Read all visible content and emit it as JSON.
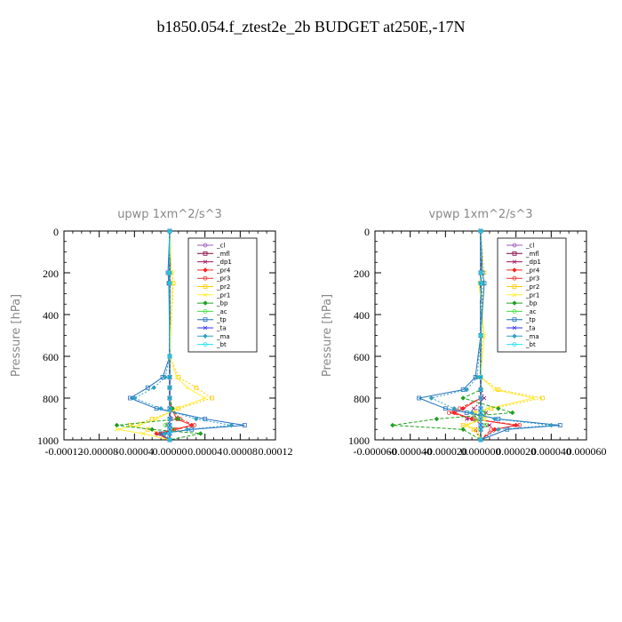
{
  "title": "b1850.054.f_ztest2e_2b  BUDGET at250E,-17N",
  "legend_items": [
    "_cl",
    "_mfl",
    "_dp1",
    "_pr4",
    "_pr3",
    "_pr2",
    "_pr1",
    "_bp",
    "_ac",
    "_tp",
    "_ta",
    "_ma",
    "_bt"
  ],
  "colors": {
    "_cl": "#9b59b6",
    "_mfl": "#800040",
    "_dp1": "#a01060",
    "_pr4": "#ff2020",
    "_pr3": "#e83030",
    "_pr2": "#ffcc00",
    "_pr1": "#ffee33",
    "_bp": "#20a020",
    "_ac": "#40e040",
    "_tp": "#2070c0",
    "_ta": "#3030ff",
    "_ma": "#30a0c0",
    "_bt": "#20e0f0"
  },
  "chart_data": [
    {
      "type": "line",
      "title": "upwp   1xm^2/s^3",
      "ylabel": "Pressure [hPa]",
      "ylim": [
        1000,
        0
      ],
      "xlim": [
        -0.00012,
        0.00012
      ],
      "xticks": [
        -0.00012,
        -8e-05,
        -4e-05,
        0,
        4e-05,
        8e-05,
        0.00012
      ],
      "xtick_labels": [
        "-0.00012",
        "-0.00008",
        "-0.00004",
        "0.00000",
        "0.00004",
        "0.00008",
        "0.00012"
      ],
      "yticks": [
        0,
        200,
        400,
        600,
        800,
        1000
      ],
      "ytick_labels": [
        "0",
        "200",
        "400",
        "600",
        "800",
        "1000"
      ],
      "pressure": [
        0,
        200,
        250,
        600,
        700,
        750,
        800,
        850,
        900,
        930,
        950,
        970,
        1000
      ],
      "series": [
        {
          "name": "_cl",
          "x": [
            0,
            0,
            0,
            0,
            0,
            0,
            0,
            0,
            0,
            0,
            0,
            0,
            0
          ]
        },
        {
          "name": "_mfl",
          "x": [
            0,
            0,
            0,
            0,
            0,
            0,
            0,
            0,
            0,
            0,
            0,
            0,
            0
          ]
        },
        {
          "name": "_dp1",
          "x": [
            0,
            0,
            0,
            0,
            0,
            0,
            0,
            0,
            2e-06,
            -3e-06,
            5e-06,
            -1.2e-05,
            0
          ]
        },
        {
          "name": "_pr4",
          "x": [
            0,
            0,
            0,
            0,
            0,
            0,
            0,
            2e-06,
            8e-06,
            2.5e-05,
            5e-06,
            -1.5e-05,
            0
          ]
        },
        {
          "name": "_pr3",
          "x": [
            0,
            0,
            0,
            0,
            0,
            0,
            0,
            3e-06,
            1.2e-05,
            2.8e-05,
            8e-06,
            -1e-05,
            0
          ]
        },
        {
          "name": "_pr2",
          "x": [
            0,
            2e-06,
            4e-06,
            0,
            1e-05,
            3e-05,
            4.8e-05,
            1e-05,
            -2e-05,
            -4.5e-05,
            -2.5e-05,
            -1e-05,
            0
          ]
        },
        {
          "name": "_pr1",
          "x": [
            0,
            2e-06,
            3e-06,
            0,
            8e-06,
            2e-05,
            4e-05,
            8e-06,
            -1.5e-05,
            -3.5e-05,
            -6e-05,
            -3e-05,
            0
          ]
        },
        {
          "name": "_bp",
          "x": [
            0,
            0,
            0,
            0,
            0,
            0,
            0,
            3e-06,
            1e-05,
            -6e-05,
            -2e-05,
            3.5e-05,
            0
          ]
        },
        {
          "name": "_ac",
          "x": [
            0,
            0,
            0,
            0,
            0,
            0,
            0,
            0,
            0,
            -5e-06,
            4e-06,
            0,
            0
          ]
        },
        {
          "name": "_tp",
          "x": [
            0,
            -2e-06,
            -1e-06,
            0,
            -8e-06,
            -2.5e-05,
            -4.5e-05,
            -1.5e-05,
            4e-05,
            8.5e-05,
            2.5e-05,
            -1e-05,
            0
          ]
        },
        {
          "name": "_ta",
          "x": [
            0,
            0,
            0,
            0,
            0,
            0,
            0,
            0,
            0,
            0,
            0,
            0,
            0
          ]
        },
        {
          "name": "_ma",
          "x": [
            0,
            -1e-06,
            0,
            0,
            -5e-06,
            -1.8e-05,
            -4e-05,
            -1e-05,
            3e-05,
            7e-05,
            2e-05,
            -5e-06,
            0
          ]
        },
        {
          "name": "_bt",
          "x": [
            0,
            0,
            0,
            0,
            0,
            0,
            0,
            0,
            0,
            0,
            0,
            0,
            0
          ]
        }
      ]
    },
    {
      "type": "line",
      "title": "vpwp   1xm^2/s^3",
      "ylabel": "Pressure [hPa]",
      "ylim": [
        1000,
        0
      ],
      "xlim": [
        -6e-05,
        6e-05
      ],
      "xticks": [
        -6e-05,
        -4e-05,
        -2e-05,
        0,
        2e-05,
        4e-05,
        6e-05
      ],
      "xtick_labels": [
        "-0.000060",
        "-0.000040",
        "-0.000020",
        "0.000000",
        "0.000020",
        "0.000040",
        "0.000060"
      ],
      "yticks": [
        0,
        200,
        400,
        600,
        800,
        1000
      ],
      "ytick_labels": [
        "0",
        "200",
        "400",
        "600",
        "800",
        "1000"
      ],
      "pressure": [
        0,
        200,
        250,
        500,
        700,
        760,
        800,
        850,
        870,
        900,
        930,
        950,
        1000
      ],
      "series": [
        {
          "name": "_cl",
          "x": [
            0,
            0,
            0,
            0,
            0,
            0,
            0,
            0,
            0,
            0,
            0,
            0,
            0
          ]
        },
        {
          "name": "_mfl",
          "x": [
            0,
            0,
            0,
            0,
            0,
            0,
            0,
            0,
            0,
            0,
            0,
            0,
            0
          ]
        },
        {
          "name": "_dp1",
          "x": [
            0,
            0,
            0,
            0,
            0,
            0,
            2e-06,
            -4e-06,
            3e-06,
            -8e-06,
            5e-06,
            -3e-06,
            0
          ]
        },
        {
          "name": "_pr4",
          "x": [
            0,
            0,
            0,
            0,
            0,
            0,
            0,
            -1e-05,
            -1.5e-05,
            -5e-06,
            2e-05,
            8e-06,
            0
          ]
        },
        {
          "name": "_pr3",
          "x": [
            0,
            0,
            0,
            0,
            0,
            0,
            0,
            -1.2e-05,
            -1.8e-05,
            -4e-06,
            2.2e-05,
            6e-06,
            0
          ]
        },
        {
          "name": "_pr2",
          "x": [
            0,
            2e-06,
            1e-06,
            1e-06,
            0,
            1e-05,
            3.5e-05,
            6e-06,
            -4e-06,
            2e-06,
            -1e-05,
            -4e-06,
            0
          ]
        },
        {
          "name": "_pr1",
          "x": [
            0,
            1e-06,
            -1e-06,
            2e-06,
            0,
            8e-06,
            3e-05,
            4e-06,
            -3e-06,
            1e-06,
            -8e-06,
            -2e-06,
            0
          ]
        },
        {
          "name": "_bp",
          "x": [
            0,
            0,
            0,
            0,
            0,
            0,
            -1e-05,
            1e-05,
            1.8e-05,
            -2.5e-05,
            -5e-05,
            -1e-05,
            0
          ]
        },
        {
          "name": "_ac",
          "x": [
            0,
            0,
            0,
            0,
            0,
            0,
            0,
            0,
            2e-06,
            -3e-06,
            3e-06,
            0,
            0
          ]
        },
        {
          "name": "_tp",
          "x": [
            0,
            1e-06,
            2e-06,
            0,
            -3e-06,
            -1e-05,
            -3.5e-05,
            -2e-05,
            -8e-06,
            1e-05,
            4.5e-05,
            1.5e-05,
            0
          ]
        },
        {
          "name": "_ta",
          "x": [
            0,
            0,
            0,
            0,
            0,
            0,
            0,
            0,
            0,
            0,
            0,
            0,
            0
          ]
        },
        {
          "name": "_ma",
          "x": [
            0,
            0,
            1e-06,
            0,
            -2e-06,
            -8e-06,
            -2.8e-05,
            -1.5e-05,
            -5e-06,
            8e-06,
            4e-05,
            1e-05,
            0
          ]
        },
        {
          "name": "_bt",
          "x": [
            0,
            0,
            0,
            0,
            0,
            0,
            0,
            0,
            0,
            0,
            0,
            0,
            0
          ]
        }
      ]
    }
  ]
}
